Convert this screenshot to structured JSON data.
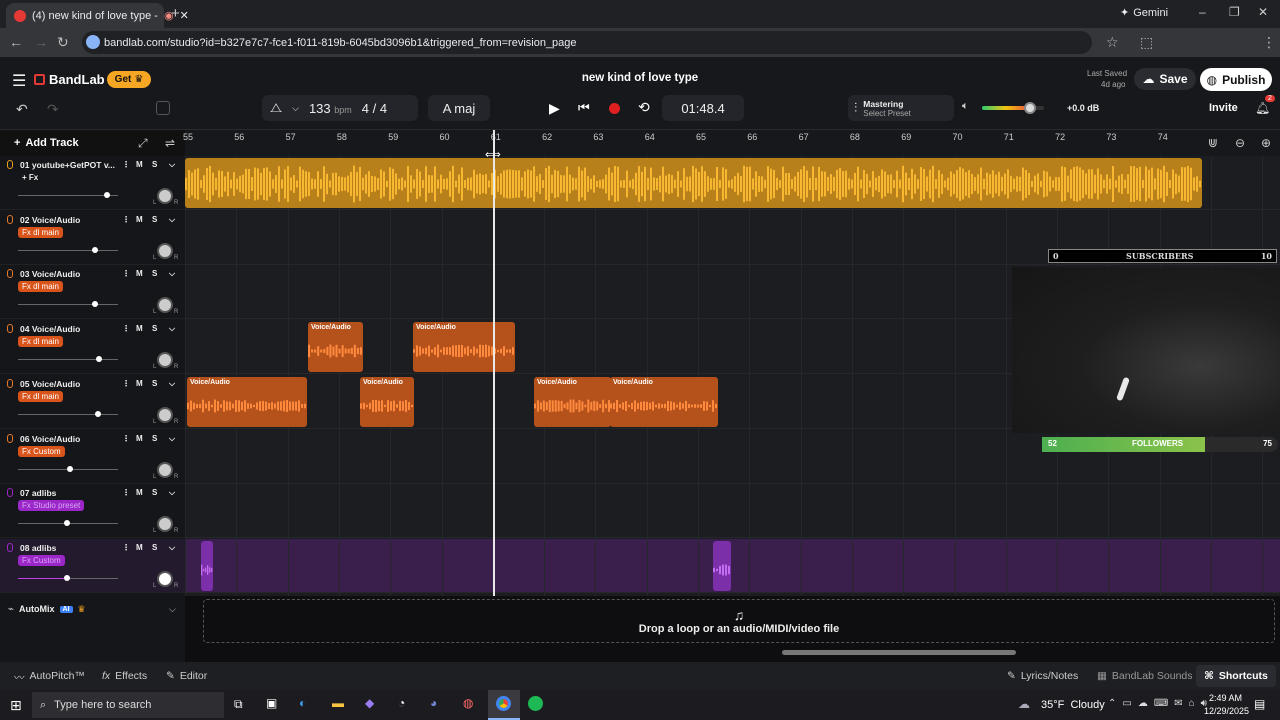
{
  "browser": {
    "tab_title": "(4) new kind of love type -",
    "new_tab": "+",
    "gemini": "Gemini",
    "url": "bandlab.com/studio?id=b327e7c7-fce1-f011-819b-6045bd3096b1&triggered_from=revision_page"
  },
  "header": {
    "brand": "BandLab",
    "get_label": "Get",
    "project_title": "new kind of love type",
    "last_saved_label": "Last Saved",
    "last_saved_value": "4d ago",
    "save_label": "Save",
    "publish_label": "Publish",
    "invite_label": "Invite",
    "notif_count": "2"
  },
  "transport": {
    "bpm_value": "133",
    "bpm_unit": "bpm",
    "time_sig": "4 / 4",
    "key": "A maj",
    "time": "01:48.4",
    "mastering_label": "Mastering",
    "mastering_preset": "Select Preset",
    "volume_db": "+0.0 dB",
    "volume_level": 0.78
  },
  "toolbar": {
    "add_track_label": "Add Track"
  },
  "ruler": [
    "55",
    "56",
    "57",
    "58",
    "59",
    "60",
    "61",
    "62",
    "63",
    "64",
    "65",
    "66",
    "67",
    "68",
    "69",
    "70",
    "71",
    "72",
    "73",
    "74"
  ],
  "tracks": [
    {
      "name": "01 youtube+GetPOT v...",
      "fx": "+ Fx",
      "fxcolor": "#00000000",
      "color": "#e5a31b",
      "vol": 0.89
    },
    {
      "name": "02 Voice/Audio",
      "fx": "Fx dl main",
      "fxcolor": "#d9541a",
      "color": "#e57a2b",
      "vol": 0.77
    },
    {
      "name": "03 Voice/Audio",
      "fx": "Fx dl main",
      "fxcolor": "#d9541a",
      "color": "#e57a2b",
      "vol": 0.77
    },
    {
      "name": "04 Voice/Audio",
      "fx": "Fx dl main",
      "fxcolor": "#d9541a",
      "color": "#e57a2b",
      "vol": 0.81
    },
    {
      "name": "05 Voice/Audio",
      "fx": "Fx dl main",
      "fxcolor": "#d9541a",
      "color": "#e57a2b",
      "vol": 0.8
    },
    {
      "name": "06 Voice/Audio",
      "fx": "Fx Custom",
      "fxcolor": "#d9541a",
      "color": "#e57a2b",
      "vol": 0.52
    },
    {
      "name": "07 adlibs",
      "fx": "Fx Studio preset",
      "fxcolor": "#9b27c9",
      "color": "#9b27c9",
      "vol": 0.49
    },
    {
      "name": "08 adlibs",
      "fx": "Fx Custom",
      "fxcolor": "#9b27c9",
      "color": "#9b27c9",
      "vol": 0.49
    }
  ],
  "track_controls": {
    "mute": "M",
    "solo": "S",
    "pan_left": "L",
    "pan_right": "R"
  },
  "clip_label": "Voice/Audio",
  "automix": {
    "label": "AutoMix",
    "ai": "AI"
  },
  "overlay": {
    "subs_left": "0",
    "subs_label": "SUBSCRIBERS",
    "subs_right": "10",
    "followers_left": "52",
    "followers_label": "FOLLOWERS",
    "followers_right": "75",
    "followers_progress": 0.69
  },
  "dropzone": "Drop a loop or an audio/MIDI/video file",
  "bottom": {
    "autopitch": "AutoPitch™",
    "effects": "Effects",
    "editor": "Editor",
    "lyrics": "Lyrics/Notes",
    "sounds": "BandLab Sounds",
    "shortcuts": "Shortcuts"
  },
  "taskbar": {
    "search_placeholder": "Type here to search",
    "weather": "35°F  Cloudy",
    "time": "2:49 AM",
    "date": "12/29/2025"
  }
}
